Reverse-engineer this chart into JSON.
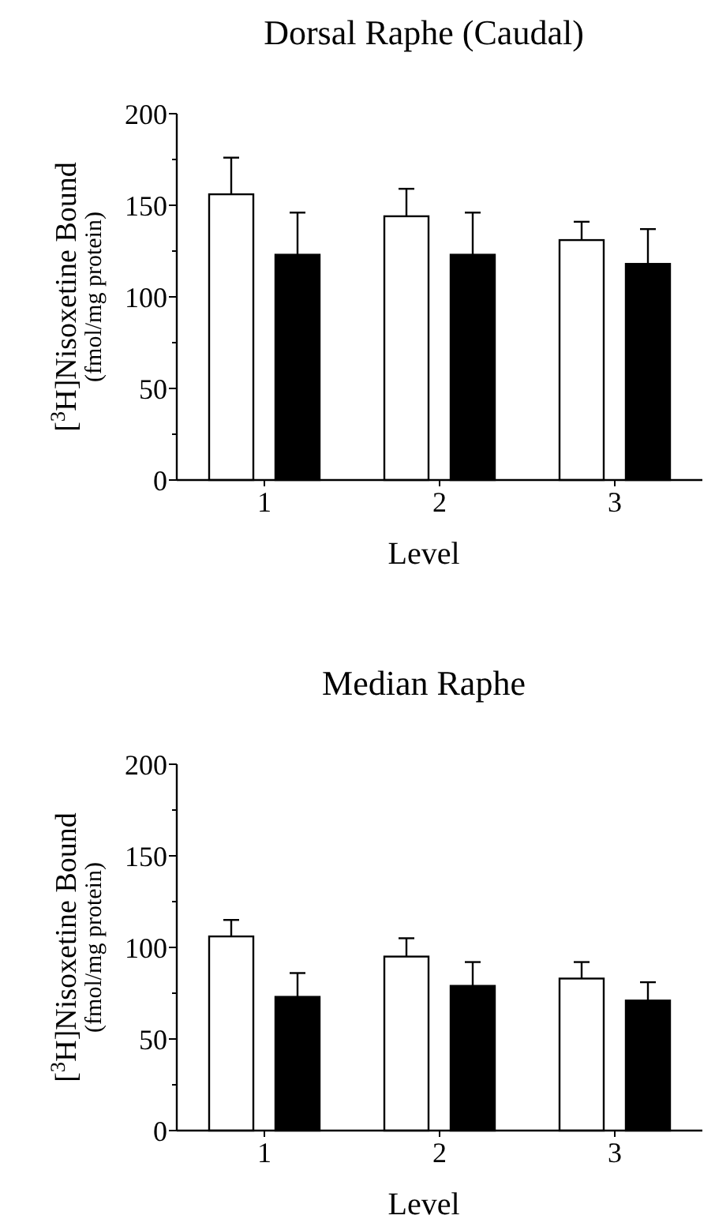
{
  "chart_data": [
    {
      "type": "bar",
      "title": "Dorsal Raphe (Caudal)",
      "xlabel": "Level",
      "ylabel": "[$^{3}$H]Nisoxetine Bound\n(fmol/mg protein)",
      "categories": [
        "1",
        "2",
        "3"
      ],
      "ylim": [
        0,
        200
      ],
      "yticks": [
        0,
        {
          "value": 25,
          "label": null
        },
        50,
        {
          "value": 75,
          "label": null
        },
        100,
        {
          "value": 125,
          "label": null
        },
        150,
        {
          "value": 175,
          "label": null
        },
        200
      ],
      "series": [
        {
          "color": "#ffffff",
          "values": [
            156,
            144,
            131
          ],
          "errors": [
            [
              156,
              176
            ],
            [
              144,
              159
            ],
            [
              131,
              141
            ]
          ]
        },
        {
          "color": "#000000",
          "values": [
            123,
            123,
            118
          ],
          "errors": [
            [
              123,
              146
            ],
            [
              123,
              146
            ],
            [
              118,
              137
            ]
          ]
        }
      ]
    },
    {
      "type": "bar",
      "title": "Median Raphe",
      "xlabel": "Level",
      "ylabel": "[$^{3}$H]Nisoxetine Bound\n(fmol/mg protein)",
      "categories": [
        "1",
        "2",
        "3"
      ],
      "ylim": [
        0,
        200
      ],
      "yticks": [
        0,
        {
          "value": 25,
          "label": null
        },
        50,
        {
          "value": 75,
          "label": null
        },
        100,
        {
          "value": 125,
          "label": null
        },
        150,
        {
          "value": 175,
          "label": null
        },
        200
      ],
      "series": [
        {
          "color": "#ffffff",
          "values": [
            106,
            95,
            83
          ],
          "errors": [
            [
              106,
              115
            ],
            [
              95,
              105
            ],
            [
              83,
              92
            ]
          ]
        },
        {
          "color": "#000000",
          "values": [
            73,
            79,
            71
          ],
          "errors": [
            [
              73,
              86
            ],
            [
              79,
              92
            ],
            [
              71,
              81
            ]
          ]
        }
      ]
    }
  ]
}
